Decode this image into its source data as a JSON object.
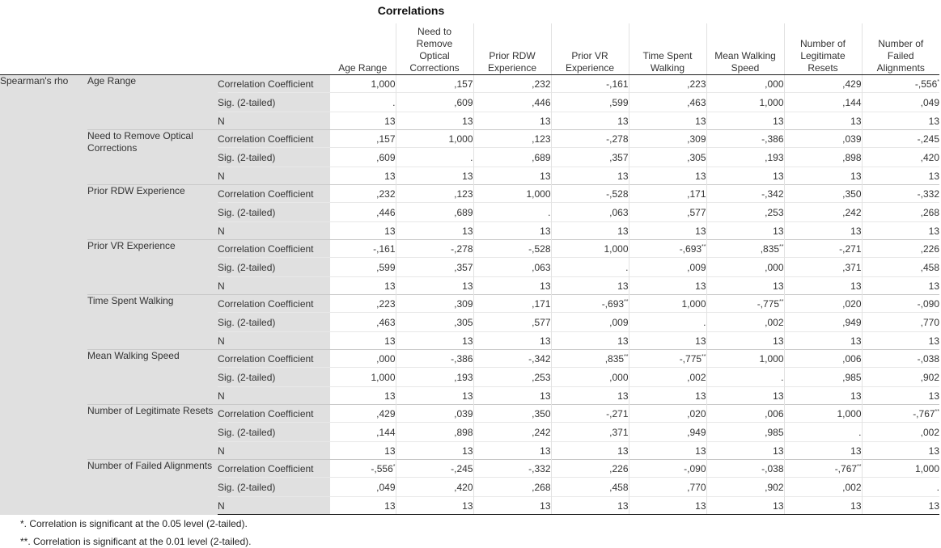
{
  "title": "Correlations",
  "method_label": "Spearman's rho",
  "columns": [
    "Age Range",
    "Need to Remove Optical Corrections",
    "Prior RDW Experience",
    "Prior VR Experience",
    "Time Spent Walking",
    "Mean Walking Speed",
    "Number of Legitimate Resets",
    "Number of Failed Alignments"
  ],
  "column_display": [
    [
      "Age Range"
    ],
    [
      "Need to",
      "Remove",
      "Optical",
      "Corrections"
    ],
    [
      "Prior RDW",
      "Experience"
    ],
    [
      "Prior VR",
      "Experience"
    ],
    [
      "Time Spent",
      "Walking"
    ],
    [
      "Mean Walking",
      "Speed"
    ],
    [
      "Number of",
      "Legitimate",
      "Resets"
    ],
    [
      "Number of",
      "Failed",
      "Alignments"
    ]
  ],
  "stat_labels": [
    "Correlation Coefficient",
    "Sig. (2-tailed)",
    "N"
  ],
  "rows": [
    {
      "variable": "Age Range",
      "correlation": [
        "1,000",
        ",157",
        ",232",
        "-,161",
        ",223",
        ",000",
        ",429",
        "-,556*"
      ],
      "sig": [
        ".",
        ",609",
        ",446",
        ",599",
        ",463",
        "1,000",
        ",144",
        ",049"
      ],
      "n": [
        "13",
        "13",
        "13",
        "13",
        "13",
        "13",
        "13",
        "13"
      ]
    },
    {
      "variable": "Need to Remove Optical Corrections",
      "correlation": [
        ",157",
        "1,000",
        ",123",
        "-,278",
        ",309",
        "-,386",
        ",039",
        "-,245"
      ],
      "sig": [
        ",609",
        ".",
        ",689",
        ",357",
        ",305",
        ",193",
        ",898",
        ",420"
      ],
      "n": [
        "13",
        "13",
        "13",
        "13",
        "13",
        "13",
        "13",
        "13"
      ]
    },
    {
      "variable": "Prior RDW Experience",
      "correlation": [
        ",232",
        ",123",
        "1,000",
        "-,528",
        ",171",
        "-,342",
        ",350",
        "-,332"
      ],
      "sig": [
        ",446",
        ",689",
        ".",
        ",063",
        ",577",
        ",253",
        ",242",
        ",268"
      ],
      "n": [
        "13",
        "13",
        "13",
        "13",
        "13",
        "13",
        "13",
        "13"
      ]
    },
    {
      "variable": "Prior VR Experience",
      "correlation": [
        "-,161",
        "-,278",
        "-,528",
        "1,000",
        "-,693**",
        ",835**",
        "-,271",
        ",226"
      ],
      "sig": [
        ",599",
        ",357",
        ",063",
        ".",
        ",009",
        ",000",
        ",371",
        ",458"
      ],
      "n": [
        "13",
        "13",
        "13",
        "13",
        "13",
        "13",
        "13",
        "13"
      ]
    },
    {
      "variable": "Time Spent Walking",
      "correlation": [
        ",223",
        ",309",
        ",171",
        "-,693**",
        "1,000",
        "-,775**",
        ",020",
        "-,090"
      ],
      "sig": [
        ",463",
        ",305",
        ",577",
        ",009",
        ".",
        ",002",
        ",949",
        ",770"
      ],
      "n": [
        "13",
        "13",
        "13",
        "13",
        "13",
        "13",
        "13",
        "13"
      ]
    },
    {
      "variable": "Mean Walking Speed",
      "correlation": [
        ",000",
        "-,386",
        "-,342",
        ",835**",
        "-,775**",
        "1,000",
        ",006",
        "-,038"
      ],
      "sig": [
        "1,000",
        ",193",
        ",253",
        ",000",
        ",002",
        ".",
        ",985",
        ",902"
      ],
      "n": [
        "13",
        "13",
        "13",
        "13",
        "13",
        "13",
        "13",
        "13"
      ]
    },
    {
      "variable": "Number of Legitimate Resets",
      "correlation": [
        ",429",
        ",039",
        ",350",
        "-,271",
        ",020",
        ",006",
        "1,000",
        "-,767**"
      ],
      "sig": [
        ",144",
        ",898",
        ",242",
        ",371",
        ",949",
        ",985",
        ".",
        ",002"
      ],
      "n": [
        "13",
        "13",
        "13",
        "13",
        "13",
        "13",
        "13",
        "13"
      ]
    },
    {
      "variable": "Number of Failed Alignments",
      "correlation": [
        "-,556*",
        "-,245",
        "-,332",
        ",226",
        "-,090",
        "-,038",
        "-,767**",
        "1,000"
      ],
      "sig": [
        ",049",
        ",420",
        ",268",
        ",458",
        ",770",
        ",902",
        ",002",
        "."
      ],
      "n": [
        "13",
        "13",
        "13",
        "13",
        "13",
        "13",
        "13",
        "13"
      ]
    }
  ],
  "footnotes": [
    "*. Correlation is significant at the 0.05 level (2-tailed).",
    "**. Correlation is significant at the 0.01 level (2-tailed)."
  ]
}
